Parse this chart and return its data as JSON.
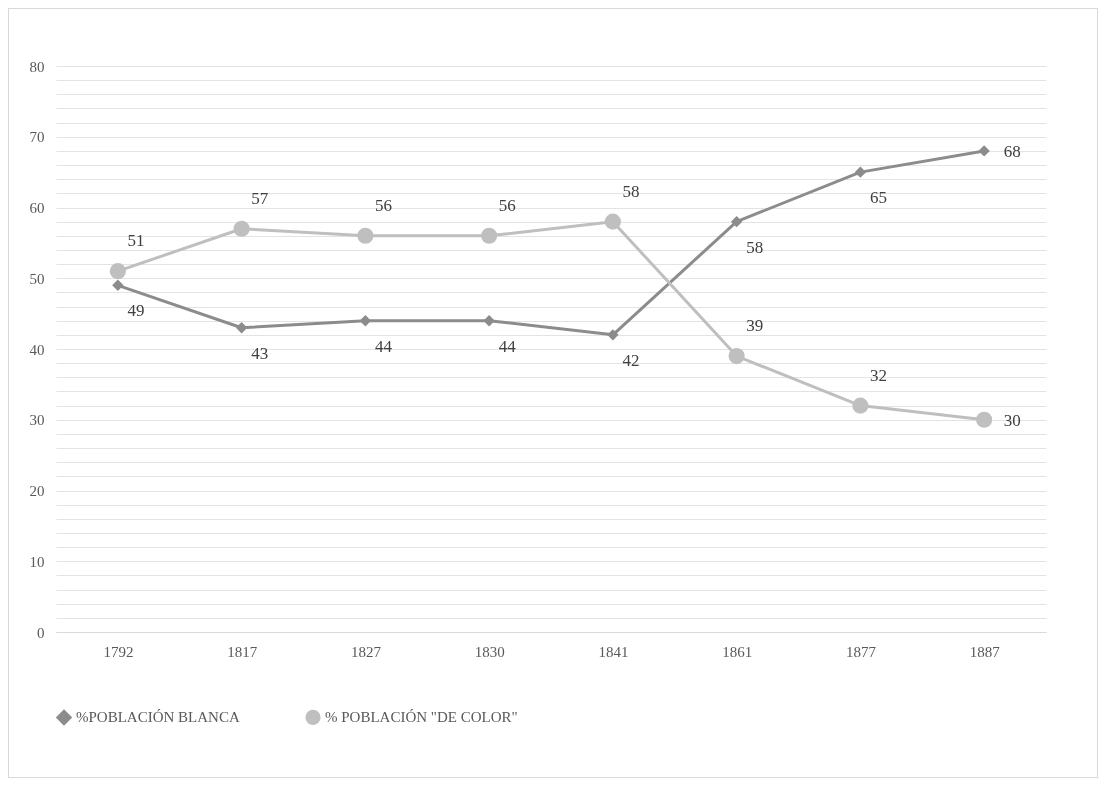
{
  "chart_data": {
    "type": "line",
    "categories": [
      "1792",
      "1817",
      "1827",
      "1830",
      "1841",
      "1861",
      "1877",
      "1887"
    ],
    "series": [
      {
        "name": "%POBLACIÓN BLANCA",
        "color": "#8c8c8c",
        "marker": "diamond",
        "values": [
          49,
          43,
          44,
          44,
          42,
          58,
          65,
          68
        ]
      },
      {
        "name": "% POBLACIÓN \"DE COLOR\"",
        "color": "#bfbfbf",
        "marker": "circle",
        "values": [
          51,
          57,
          56,
          56,
          58,
          39,
          32,
          30
        ]
      }
    ],
    "ylim": [
      0,
      80
    ],
    "yticks": [
      0,
      {
        "value": 2,
        "label": null
      },
      {
        "value": 4,
        "label": null
      },
      {
        "value": 6,
        "label": null
      },
      {
        "value": 8,
        "label": null
      },
      10,
      {
        "value": 12,
        "label": null
      },
      {
        "value": 14,
        "label": null
      },
      {
        "value": 16,
        "label": null
      },
      {
        "value": 18,
        "label": null
      },
      20,
      {
        "value": 22,
        "label": null
      },
      {
        "value": 24,
        "label": null
      },
      {
        "value": 26,
        "label": null
      },
      {
        "value": 28,
        "label": null
      },
      30,
      {
        "value": 32,
        "label": null
      },
      {
        "value": 34,
        "label": null
      },
      {
        "value": 36,
        "label": null
      },
      {
        "value": 38,
        "label": null
      },
      40,
      {
        "value": 42,
        "label": null
      },
      {
        "value": 44,
        "label": null
      },
      {
        "value": 46,
        "label": null
      },
      {
        "value": 48,
        "label": null
      },
      50,
      {
        "value": 52,
        "label": null
      },
      {
        "value": 54,
        "label": null
      },
      {
        "value": 56,
        "label": null
      },
      {
        "value": 58,
        "label": null
      },
      60,
      {
        "value": 62,
        "label": null
      },
      {
        "value": 64,
        "label": null
      },
      {
        "value": 66,
        "label": null
      },
      {
        "value": 68,
        "label": null
      },
      70,
      {
        "value": 72,
        "label": null
      },
      {
        "value": 74,
        "label": null
      },
      {
        "value": 76,
        "label": null
      },
      {
        "value": 78,
        "label": null
      },
      80
    ],
    "grid": "y",
    "legend": "bottom",
    "data_labels": true,
    "line_style": "solid"
  }
}
